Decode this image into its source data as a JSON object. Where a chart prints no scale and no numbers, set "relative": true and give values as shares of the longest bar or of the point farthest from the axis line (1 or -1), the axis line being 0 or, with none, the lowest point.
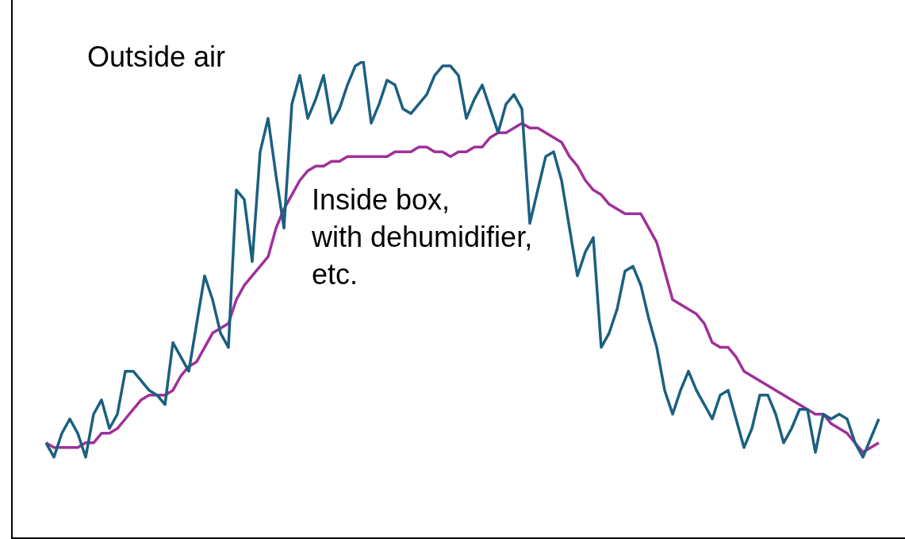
{
  "chart_data": {
    "type": "line",
    "relative": true,
    "categories": [
      null,
      null,
      null,
      null,
      null,
      null,
      null,
      null,
      null,
      null,
      null,
      null,
      null,
      null,
      null,
      null,
      null,
      null,
      null,
      null,
      null,
      null,
      null,
      null,
      null,
      null,
      null,
      null,
      null,
      null,
      null,
      null,
      null,
      null,
      null,
      null,
      null,
      null,
      null,
      null,
      null,
      null,
      null,
      null,
      null,
      null,
      null,
      null,
      null,
      null,
      null,
      null,
      null,
      null,
      null,
      null,
      null,
      null,
      null,
      null,
      null,
      null,
      null,
      null,
      null,
      null,
      null,
      null,
      null,
      null,
      null,
      null,
      null,
      null,
      null,
      null,
      null,
      null,
      null,
      null,
      null,
      null,
      null,
      null,
      null,
      null,
      null,
      null,
      null,
      null,
      null,
      null,
      null,
      null,
      null,
      null,
      null,
      null,
      null,
      null,
      null,
      null,
      null,
      null,
      null,
      null
    ],
    "series": [
      {
        "name": "Outside air",
        "color": "#1b6080",
        "values": [
          0.2,
          0.17,
          0.22,
          0.25,
          0.22,
          0.17,
          0.26,
          0.29,
          0.23,
          0.26,
          0.35,
          0.35,
          0.33,
          0.31,
          0.3,
          0.28,
          0.41,
          0.38,
          0.35,
          0.45,
          0.55,
          0.5,
          0.43,
          0.4,
          0.73,
          0.71,
          0.58,
          0.81,
          0.88,
          0.76,
          0.65,
          0.91,
          0.97,
          0.88,
          0.92,
          0.97,
          0.87,
          0.9,
          0.95,
          0.99,
          1.0,
          0.87,
          0.91,
          0.96,
          0.95,
          0.9,
          0.89,
          0.91,
          0.93,
          0.97,
          0.99,
          0.99,
          0.97,
          0.88,
          0.92,
          0.95,
          0.9,
          0.85,
          0.91,
          0.93,
          0.9,
          0.66,
          0.73,
          0.8,
          0.81,
          0.75,
          0.65,
          0.55,
          0.6,
          0.63,
          0.4,
          0.43,
          0.48,
          0.56,
          0.57,
          0.53,
          0.46,
          0.4,
          0.31,
          0.26,
          0.31,
          0.35,
          0.31,
          0.28,
          0.25,
          0.3,
          0.31,
          0.25,
          0.19,
          0.23,
          0.3,
          0.3,
          0.26,
          0.2,
          0.23,
          0.27,
          0.27,
          0.18,
          0.26,
          0.25,
          0.26,
          0.25,
          0.2,
          0.17,
          0.21,
          0.25
        ]
      },
      {
        "name": "Inside box,\nwith dehumidifier,\netc.",
        "color": "#a0309a",
        "values": [
          0.2,
          0.19,
          0.19,
          0.19,
          0.19,
          0.2,
          0.2,
          0.22,
          0.22,
          0.23,
          0.25,
          0.27,
          0.29,
          0.3,
          0.3,
          0.3,
          0.31,
          0.34,
          0.36,
          0.37,
          0.4,
          0.43,
          0.44,
          0.45,
          0.5,
          0.53,
          0.55,
          0.57,
          0.59,
          0.65,
          0.69,
          0.72,
          0.75,
          0.77,
          0.78,
          0.78,
          0.79,
          0.79,
          0.8,
          0.8,
          0.8,
          0.8,
          0.8,
          0.8,
          0.81,
          0.81,
          0.81,
          0.82,
          0.82,
          0.81,
          0.81,
          0.8,
          0.81,
          0.81,
          0.82,
          0.82,
          0.84,
          0.85,
          0.85,
          0.86,
          0.87,
          0.86,
          0.86,
          0.85,
          0.84,
          0.83,
          0.8,
          0.78,
          0.75,
          0.73,
          0.72,
          0.7,
          0.69,
          0.68,
          0.68,
          0.68,
          0.65,
          0.62,
          0.56,
          0.5,
          0.49,
          0.48,
          0.47,
          0.45,
          0.41,
          0.4,
          0.4,
          0.38,
          0.35,
          0.34,
          0.33,
          0.32,
          0.31,
          0.3,
          0.29,
          0.28,
          0.27,
          0.26,
          0.26,
          0.24,
          0.23,
          0.22,
          0.2,
          0.18,
          0.19,
          0.2
        ]
      }
    ]
  }
}
